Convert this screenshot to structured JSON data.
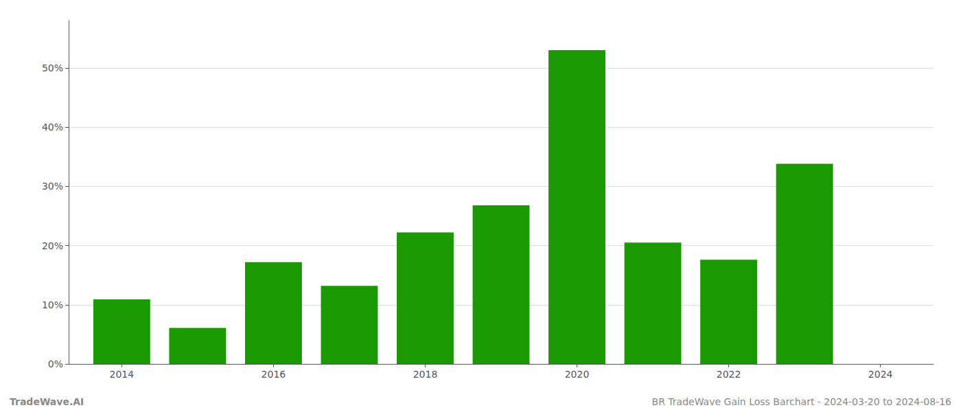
{
  "chart_data": {
    "type": "bar",
    "x": [
      2014,
      2015,
      2016,
      2017,
      2018,
      2019,
      2020,
      2021,
      2022,
      2023
    ],
    "values": [
      0.109,
      0.061,
      0.172,
      0.132,
      0.222,
      0.268,
      0.53,
      0.205,
      0.176,
      0.338
    ],
    "color": "#1a9a00",
    "xlim": [
      2013.3,
      2024.7
    ],
    "xticks": [
      2014,
      2016,
      2018,
      2020,
      2022,
      2024
    ],
    "ylim": [
      0,
      0.58
    ],
    "yticks": [
      {
        "value": 0,
        "label": "0%"
      },
      {
        "value": 0.1,
        "label": "10%"
      },
      {
        "value": 0.2,
        "label": "20%"
      },
      {
        "value": 0.3,
        "label": "30%"
      },
      {
        "value": 0.4,
        "label": "40%"
      },
      {
        "value": 0.5,
        "label": "50%"
      }
    ],
    "grid": true,
    "annotations": [
      "TradeWave.AI",
      "BR TradeWave Gain Loss Barchart - 2024-03-20 to 2024-08-16"
    ]
  }
}
